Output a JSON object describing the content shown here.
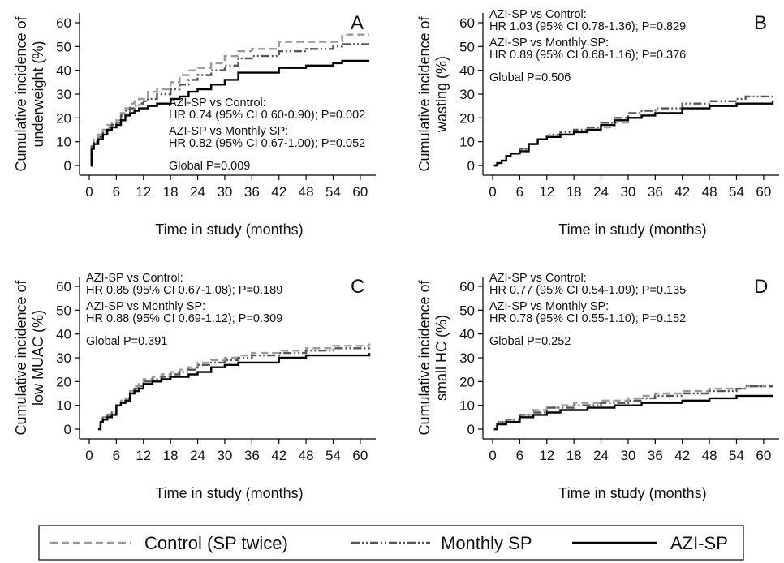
{
  "chart_data": [
    {
      "type": "line",
      "panel": "A",
      "ylabel": "Cumulative incidence of underweight (%)",
      "ylabel_lines": [
        "Cumulative incidence of",
        "underweight (%)"
      ],
      "xlabel": "Time in study (months)",
      "xlim": [
        0,
        62
      ],
      "ylim": [
        0,
        65
      ],
      "xticks": [
        0,
        6,
        12,
        18,
        24,
        30,
        36,
        42,
        48,
        54,
        60
      ],
      "yticks": [
        0,
        10,
        20,
        30,
        40,
        50,
        60
      ],
      "annotations": [
        "AZI-SP vs Control:",
        "HR 0.74 (95% CI 0.60-0.90); P=0.002",
        "AZI-SP vs Monthly SP:",
        "HR 0.82 (95% CI 0.67-1.00); P=0.052",
        "Global P=0.009"
      ],
      "series": [
        {
          "name": "Control (SP twice)",
          "x": [
            0.3,
            0.5,
            1,
            2,
            3,
            4,
            5,
            6,
            7,
            8,
            9,
            10,
            11,
            12,
            13,
            15,
            18,
            20,
            22,
            24,
            27,
            30,
            33,
            36,
            42,
            48,
            54,
            56,
            62
          ],
          "y": [
            0,
            8,
            11,
            13,
            15,
            17,
            18,
            19,
            22,
            24,
            26,
            27,
            28,
            28,
            31,
            32,
            35,
            38,
            40,
            41,
            43,
            46,
            48,
            49,
            52,
            52,
            52,
            55,
            55
          ]
        },
        {
          "name": "Monthly SP",
          "x": [
            0.3,
            0.5,
            1,
            2,
            3,
            4,
            5,
            6,
            7,
            8,
            9,
            10,
            11,
            12,
            13,
            15,
            18,
            20,
            22,
            24,
            27,
            30,
            33,
            36,
            42,
            48,
            54,
            56,
            62
          ],
          "y": [
            0,
            8,
            10,
            12,
            14,
            16,
            17,
            18,
            21,
            23,
            24,
            25,
            26,
            27,
            28,
            30,
            32,
            34,
            36,
            38,
            40,
            42,
            45,
            46,
            48,
            49,
            50,
            51,
            51
          ]
        },
        {
          "name": "AZI-SP",
          "x": [
            0.3,
            0.5,
            1,
            2,
            3,
            4,
            5,
            6,
            7,
            8,
            9,
            10,
            11,
            12,
            13,
            15,
            18,
            20,
            22,
            24,
            27,
            30,
            33,
            36,
            42,
            48,
            54,
            56,
            62
          ],
          "y": [
            0,
            7,
            9,
            11,
            13,
            15,
            16,
            17,
            19,
            21,
            22,
            23,
            24,
            24,
            25,
            26,
            28,
            29,
            31,
            32,
            34,
            36,
            39,
            39,
            41,
            42,
            43,
            44,
            44
          ]
        }
      ]
    },
    {
      "type": "line",
      "panel": "B",
      "ylabel": "Cumulative incidence of wasting (%)",
      "ylabel_lines": [
        "Cumulative incidence of",
        "wasting (%)"
      ],
      "xlabel": "Time in study (months)",
      "xlim": [
        0,
        62
      ],
      "ylim": [
        0,
        65
      ],
      "xticks": [
        0,
        6,
        12,
        18,
        24,
        30,
        36,
        42,
        48,
        54,
        60
      ],
      "yticks": [
        0,
        10,
        20,
        30,
        40,
        50,
        60
      ],
      "annotations": [
        "AZI-SP vs Control:",
        "HR 1.03 (95% CI 0.78-1.36); P=0.829",
        "AZI-SP vs Monthly SP:",
        "HR 0.89 (95% CI 0.68-1.16); P=0.376",
        "Global P=0.506"
      ],
      "series": [
        {
          "name": "Control (SP twice)",
          "x": [
            0.3,
            1,
            2,
            3,
            4,
            6,
            8,
            10,
            12,
            15,
            18,
            21,
            24,
            27,
            30,
            33,
            36,
            42,
            48,
            54,
            56,
            62
          ],
          "y": [
            0,
            1,
            2,
            4,
            5,
            7,
            9,
            11,
            12,
            13,
            14,
            15,
            16,
            18,
            20,
            21,
            22,
            24,
            25,
            26,
            26,
            26
          ]
        },
        {
          "name": "Monthly SP",
          "x": [
            0.3,
            1,
            2,
            3,
            4,
            6,
            8,
            10,
            12,
            15,
            18,
            21,
            24,
            27,
            30,
            33,
            36,
            42,
            48,
            54,
            56,
            62
          ],
          "y": [
            0,
            1,
            2,
            4,
            5,
            7,
            9,
            11,
            13,
            14,
            15,
            16,
            18,
            20,
            22,
            23,
            24,
            26,
            27,
            28,
            29,
            29
          ]
        },
        {
          "name": "AZI-SP",
          "x": [
            0.3,
            1,
            2,
            3,
            4,
            6,
            8,
            10,
            12,
            15,
            18,
            21,
            24,
            27,
            30,
            33,
            36,
            42,
            48,
            54,
            56,
            62
          ],
          "y": [
            0,
            1,
            2,
            4,
            5,
            6,
            9,
            11,
            12,
            13,
            14,
            15,
            17,
            19,
            20,
            21,
            22,
            24,
            25,
            26,
            26,
            27
          ]
        }
      ]
    },
    {
      "type": "line",
      "panel": "C",
      "ylabel": "Cumulative incidence of low MUAC (%)",
      "ylabel_lines": [
        "Cumulative incidence of",
        "low MUAC (%)"
      ],
      "xlabel": "Time in study (months)",
      "xlim": [
        0,
        62
      ],
      "ylim": [
        0,
        65
      ],
      "xticks": [
        0,
        6,
        12,
        18,
        24,
        30,
        36,
        42,
        48,
        54,
        60
      ],
      "yticks": [
        0,
        10,
        20,
        30,
        40,
        50,
        60
      ],
      "annotations": [
        "AZI-SP vs Control:",
        "HR 0.85 (95% CI 0.67-1.08); P=0.189",
        "AZI-SP vs Monthly SP:",
        "HR 0.88 (95% CI 0.69-1.12); P=0.309",
        "Global P=0.391"
      ],
      "series": [
        {
          "name": "Control (SP twice)",
          "x": [
            2,
            2.5,
            3,
            4,
            5,
            6,
            7,
            8,
            9,
            10,
            11,
            12,
            14,
            16,
            18,
            20,
            22,
            24,
            27,
            30,
            33,
            36,
            42,
            48,
            54,
            56,
            62
          ],
          "y": [
            0,
            3,
            5,
            6,
            7,
            10,
            12,
            13,
            16,
            18,
            19,
            21,
            22,
            23,
            24,
            25,
            26,
            28,
            29,
            30,
            31,
            32,
            33,
            34,
            35,
            35,
            36
          ]
        },
        {
          "name": "Monthly SP",
          "x": [
            2,
            2.5,
            3,
            4,
            5,
            6,
            7,
            8,
            9,
            10,
            11,
            12,
            14,
            16,
            18,
            20,
            22,
            24,
            27,
            30,
            33,
            36,
            42,
            48,
            54,
            56,
            62
          ],
          "y": [
            0,
            3,
            5,
            6,
            7,
            10,
            11,
            12,
            15,
            17,
            18,
            20,
            21,
            22,
            23,
            24,
            25,
            27,
            28,
            29,
            30,
            31,
            32,
            33,
            34,
            34,
            35
          ]
        },
        {
          "name": "AZI-SP",
          "x": [
            2,
            2.5,
            3,
            4,
            5,
            6,
            7,
            8,
            9,
            10,
            11,
            12,
            14,
            16,
            18,
            20,
            22,
            24,
            27,
            30,
            33,
            36,
            42,
            48,
            54,
            56,
            62
          ],
          "y": [
            0,
            3,
            4,
            5,
            6,
            10,
            11,
            12,
            15,
            16,
            17,
            19,
            20,
            21,
            22,
            22,
            23,
            24,
            26,
            27,
            28,
            28,
            30,
            31,
            31,
            31,
            32
          ]
        }
      ]
    },
    {
      "type": "line",
      "panel": "D",
      "ylabel": "Cumulative incidence of small HC (%)",
      "ylabel_lines": [
        "Cumulative incidence of",
        "small HC (%)"
      ],
      "xlabel": "Time in study (months)",
      "xlim": [
        0,
        62
      ],
      "ylim": [
        0,
        65
      ],
      "xticks": [
        0,
        6,
        12,
        18,
        24,
        30,
        36,
        42,
        48,
        54,
        60
      ],
      "yticks": [
        0,
        10,
        20,
        30,
        40,
        50,
        60
      ],
      "annotations": [
        "AZI-SP vs Control:",
        "HR 0.77 (95% CI 0.54-1.09); P=0.135",
        "AZI-SP vs Monthly SP:",
        "HR 0.78 (95% CI 0.55-1.10); P=0.152",
        "Global P=0.252"
      ],
      "series": [
        {
          "name": "Control (SP twice)",
          "x": [
            0.3,
            1,
            3,
            6,
            9,
            12,
            15,
            18,
            21,
            24,
            27,
            30,
            33,
            36,
            42,
            48,
            54,
            56,
            62
          ],
          "y": [
            0,
            3,
            4,
            6,
            8,
            9,
            10,
            11,
            11,
            12,
            12,
            13,
            14,
            15,
            16,
            17,
            17,
            18,
            18
          ]
        },
        {
          "name": "Monthly SP",
          "x": [
            0.3,
            1,
            3,
            6,
            9,
            12,
            15,
            18,
            21,
            24,
            27,
            30,
            33,
            36,
            42,
            48,
            54,
            56,
            62
          ],
          "y": [
            0,
            3,
            4,
            6,
            7,
            9,
            9,
            10,
            10,
            11,
            11,
            12,
            13,
            14,
            15,
            16,
            17,
            18,
            18
          ]
        },
        {
          "name": "AZI-SP",
          "x": [
            0.3,
            1,
            3,
            6,
            9,
            12,
            15,
            18,
            21,
            24,
            27,
            30,
            33,
            36,
            42,
            48,
            54,
            56,
            62
          ],
          "y": [
            0,
            2,
            3,
            5,
            6,
            7,
            8,
            8,
            9,
            9,
            10,
            10,
            11,
            11,
            12,
            13,
            14,
            14,
            14
          ]
        }
      ]
    }
  ],
  "legend": [
    {
      "label": "Control (SP twice)",
      "color": "#999999",
      "dash": "dashed"
    },
    {
      "label": "Monthly SP",
      "color": "#555555",
      "dash": "dash-dot-dot"
    },
    {
      "label": "AZI-SP",
      "color": "#000000",
      "dash": "solid"
    }
  ]
}
